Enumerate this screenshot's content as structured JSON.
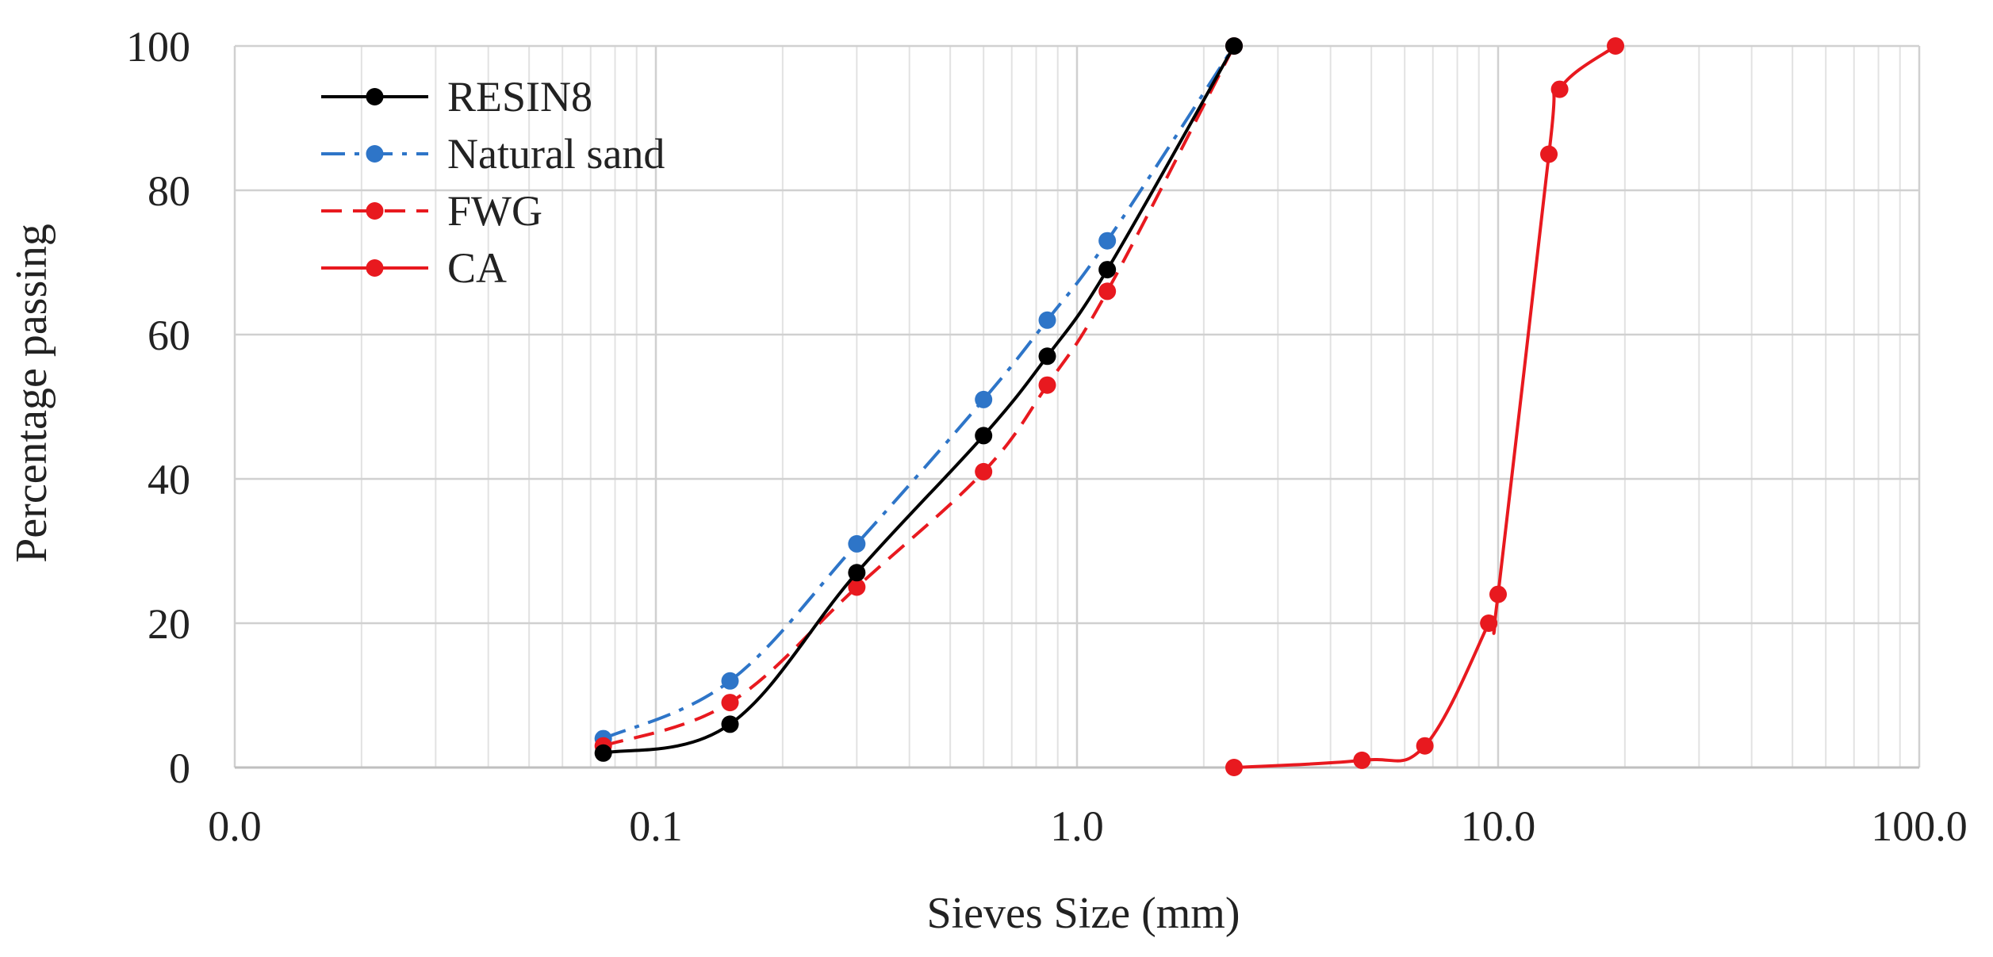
{
  "chart_data": {
    "type": "line",
    "title": "",
    "xlabel": "Sieves Size (mm)",
    "ylabel": "Percentage  passing",
    "x_scale": "log",
    "xlim": [
      0.01,
      100
    ],
    "ylim": [
      0,
      100
    ],
    "x_ticks": [
      0.01,
      0.1,
      1,
      10,
      100
    ],
    "x_tick_labels": [
      "0.0",
      "0.1",
      "1.0",
      "10.0",
      "100.0"
    ],
    "y_ticks": [
      0,
      20,
      40,
      60,
      80,
      100
    ],
    "y_tick_labels": [
      "0",
      "20",
      "40",
      "60",
      "80",
      "100"
    ],
    "grid": true,
    "legend_position": "top-left",
    "series": [
      {
        "name": "RESIN8",
        "color": "#000000",
        "dash": "solid",
        "x": [
          0.075,
          0.15,
          0.3,
          0.6,
          0.85,
          1.18,
          2.36
        ],
        "y": [
          2,
          6,
          27,
          46,
          57,
          69,
          100
        ]
      },
      {
        "name": "Natural sand",
        "color": "#2E75C8",
        "dash": "dashdot",
        "x": [
          0.075,
          0.15,
          0.3,
          0.6,
          0.85,
          1.18,
          2.36
        ],
        "y": [
          4,
          12,
          31,
          51,
          62,
          73,
          100
        ]
      },
      {
        "name": "FWG",
        "color": "#E8191F",
        "dash": "dashed",
        "x": [
          0.075,
          0.15,
          0.3,
          0.6,
          0.85,
          1.18,
          2.36
        ],
        "y": [
          3,
          9,
          25,
          41,
          53,
          66,
          100
        ]
      },
      {
        "name": "CA",
        "color": "#E8191F",
        "dash": "solid",
        "x": [
          2.36,
          4.75,
          6.7,
          9.5,
          10,
          13.2,
          14,
          19
        ],
        "y": [
          0,
          1,
          3,
          20,
          24,
          85,
          94,
          100
        ]
      }
    ]
  }
}
